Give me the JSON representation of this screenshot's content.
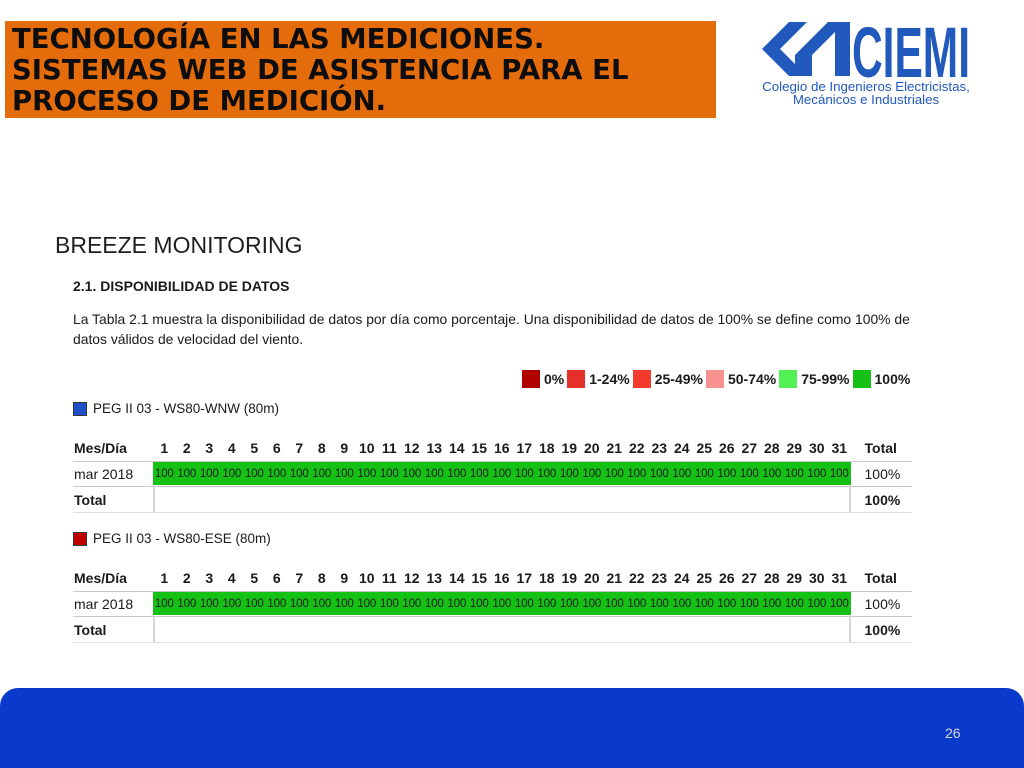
{
  "header": {
    "title_lines": [
      "TECNOLOGÍA EN LAS MEDICIONES.",
      "SISTEMAS WEB DE ASISTENCIA PARA EL",
      "PROCESO DE MEDICIÓN."
    ],
    "background_color": "#e46c0a"
  },
  "logo": {
    "name": "CIEMI",
    "subtitle_line_1": "Colegio de Ingenieros Electricistas,",
    "subtitle_line_2": "Mecánicos e Industriales",
    "color": "#2159bd"
  },
  "section_title": "BREEZE MONITORING",
  "report": {
    "heading": "2.1. DISPONIBILIDAD DE DATOS",
    "paragraph_lines": [
      "La Tabla 2.1 muestra la disponibilidad de datos por día como porcentaje. Una disponibilidad de datos de 100% se define como 100% de",
      "datos válidos de velocidad del viento."
    ],
    "legend": [
      {
        "label": "0%",
        "color": "#b10000"
      },
      {
        "label": "1-24%",
        "color": "#e3302a"
      },
      {
        "label": "25-49%",
        "color": "#f43a2c"
      },
      {
        "label": "50-74%",
        "color": "#f79290"
      },
      {
        "label": "75-99%",
        "color": "#52f052"
      },
      {
        "label": "100%",
        "color": "#16c116"
      }
    ],
    "tables": [
      {
        "sensor_label": "PEG II 03 - WS80-WNW (80m)",
        "sensor_color": "#1f4fc9",
        "header": {
          "row_label": "Mes/Día",
          "total_label": "Total"
        },
        "days": [
          1,
          2,
          3,
          4,
          5,
          6,
          7,
          8,
          9,
          10,
          11,
          12,
          13,
          14,
          15,
          16,
          17,
          18,
          19,
          20,
          21,
          22,
          23,
          24,
          25,
          26,
          27,
          28,
          29,
          30,
          31
        ],
        "rows": [
          {
            "label": "mar 2018",
            "values": [
              100,
              100,
              100,
              100,
              100,
              100,
              100,
              100,
              100,
              100,
              100,
              100,
              100,
              100,
              100,
              100,
              100,
              100,
              100,
              100,
              100,
              100,
              100,
              100,
              100,
              100,
              100,
              100,
              100,
              100,
              100
            ],
            "total": "100%"
          }
        ],
        "total_row": {
          "label": "Total",
          "value": "100%"
        }
      },
      {
        "sensor_label": "PEG II 03 - WS80-ESE (80m)",
        "sensor_color": "#c00000",
        "header": {
          "row_label": "Mes/Día",
          "total_label": "Total"
        },
        "days": [
          1,
          2,
          3,
          4,
          5,
          6,
          7,
          8,
          9,
          10,
          11,
          12,
          13,
          14,
          15,
          16,
          17,
          18,
          19,
          20,
          21,
          22,
          23,
          24,
          25,
          26,
          27,
          28,
          29,
          30,
          31
        ],
        "rows": [
          {
            "label": "mar 2018",
            "values": [
              100,
              100,
              100,
              100,
              100,
              100,
              100,
              100,
              100,
              100,
              100,
              100,
              100,
              100,
              100,
              100,
              100,
              100,
              100,
              100,
              100,
              100,
              100,
              100,
              100,
              100,
              100,
              100,
              100,
              100,
              100
            ],
            "total": "100%"
          }
        ],
        "total_row": {
          "label": "Total",
          "value": "100%"
        }
      }
    ]
  },
  "footer": {
    "page_number": "26",
    "background_color": "#0a3acb"
  }
}
